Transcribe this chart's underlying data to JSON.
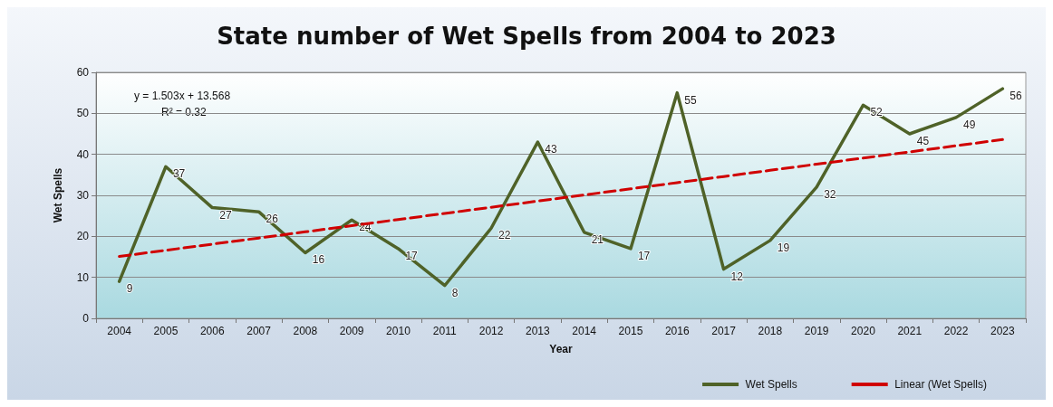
{
  "chart_data": {
    "type": "line",
    "title": "State number of Wet Spells from 2004 to 2023",
    "xlabel": "Year",
    "ylabel": "Wet Spells",
    "categories": [
      "2004",
      "2005",
      "2006",
      "2007",
      "2008",
      "2009",
      "2010",
      "2011",
      "2012",
      "2013",
      "2014",
      "2015",
      "2016",
      "2017",
      "2018",
      "2019",
      "2020",
      "2021",
      "2022",
      "2023"
    ],
    "series": [
      {
        "name": "Wet Spells",
        "color": "#4f6228",
        "values": [
          9,
          37,
          27,
          26,
          16,
          24,
          17,
          8,
          22,
          43,
          21,
          17,
          55,
          12,
          19,
          32,
          52,
          45,
          49,
          56
        ],
        "value_labels": [
          "9",
          "37",
          "27",
          "26",
          "16",
          "24",
          "17",
          "8",
          "22",
          "43",
          "21",
          "17",
          "55",
          "12",
          "19",
          "32",
          "52",
          "45",
          "49",
          "56"
        ]
      },
      {
        "name": "Linear (Wet Spells)",
        "color": "#d00000",
        "values": [
          15.1,
          16.6,
          18.1,
          19.6,
          21.1,
          22.6,
          24.1,
          25.6,
          27.1,
          28.6,
          30.1,
          31.6,
          33.1,
          34.6,
          36.1,
          37.6,
          39.1,
          40.6,
          42.1,
          43.6
        ],
        "line_style": "dashed"
      }
    ],
    "annotations": [
      "y = 1.503x + 13.568",
      "R² = 0.32"
    ],
    "ylim": [
      0,
      60
    ],
    "yticks": [
      0,
      10,
      20,
      30,
      40,
      50,
      60
    ],
    "grid": "y",
    "legend": "bottom right",
    "marker": "none",
    "line_style": "solid"
  }
}
